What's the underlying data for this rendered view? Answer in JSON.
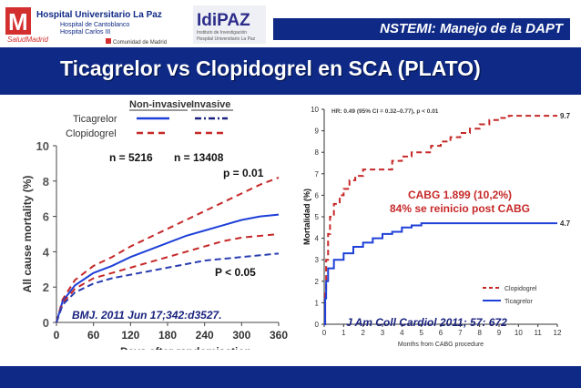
{
  "header": {
    "hospital_name": "Hospital Universitario La Paz",
    "hospital_sub1": "Hospital de Cantoblanco",
    "hospital_sub2": "Hospital Carlos III",
    "salud": "SaludMadrid",
    "comunidad": "Comunidad de Madrid",
    "idipaz": "IdiPAZ",
    "idipaz_sub1": "Instituto de Investigación",
    "idipaz_sub2": "Hospital Universitario La Paz",
    "title": "NSTEMI: Manejo de la DAPT"
  },
  "main_title": "Ticagrelor vs Clopidogrel en SCA (PLATO)",
  "colors": {
    "navy": "#0f2a86",
    "red": "#c62828",
    "blue": "#1e40d8"
  },
  "chart_data": [
    {
      "type": "line",
      "xlabel": "Days after randomisation",
      "ylabel": "All cause mortality (%)",
      "xlim": [
        0,
        360
      ],
      "ylim": [
        0,
        10
      ],
      "xticks": [
        "0",
        "60",
        "120",
        "180",
        "240",
        "300",
        "360"
      ],
      "yticks": [
        "0",
        "2",
        "4",
        "6",
        "8",
        "10"
      ],
      "legend": {
        "header_a": "Non-invasive",
        "header_b": "Invasive",
        "row1": "Ticagrelor",
        "row2": "Clopidogrel"
      },
      "x": [
        0,
        10,
        30,
        60,
        90,
        120,
        150,
        180,
        210,
        240,
        270,
        300,
        330,
        360
      ],
      "series": [
        {
          "name": "Non-invasive Clopidogrel",
          "values": [
            0,
            1.3,
            2.4,
            3.2,
            3.7,
            4.3,
            4.8,
            5.3,
            5.8,
            6.3,
            6.8,
            7.3,
            7.8,
            8.2
          ]
        },
        {
          "name": "Non-invasive Ticagrelor",
          "values": [
            0,
            1.2,
            2.1,
            2.8,
            3.2,
            3.7,
            4.1,
            4.5,
            4.9,
            5.2,
            5.5,
            5.8,
            6.0,
            6.1
          ]
        },
        {
          "name": "Invasive Clopidogrel",
          "values": [
            0,
            1.1,
            1.9,
            2.5,
            2.8,
            3.1,
            3.4,
            3.7,
            4.0,
            4.3,
            4.6,
            4.8,
            4.9,
            5.0
          ]
        },
        {
          "name": "Invasive Ticagrelor",
          "values": [
            0,
            1.0,
            1.7,
            2.2,
            2.5,
            2.7,
            2.9,
            3.1,
            3.3,
            3.5,
            3.6,
            3.7,
            3.8,
            3.9
          ]
        }
      ],
      "annotations": {
        "n_noninv": "n = 5216",
        "n_inv": "n = 13408",
        "p1": "p = 0.01",
        "p2": "P < 0.05",
        "ref": "BMJ. 2011 Jun 17;342:d3527."
      }
    },
    {
      "type": "line",
      "xlabel": "Months from CABG procedure",
      "ylabel": "Mortalidad (%)",
      "xlim": [
        0,
        12
      ],
      "ylim": [
        0,
        10
      ],
      "xticks": [
        "0",
        "1",
        "2",
        "3",
        "4",
        "5",
        "6",
        "7",
        "8",
        "9",
        "10",
        "11",
        "12"
      ],
      "yticks": [
        "0",
        "1",
        "2",
        "3",
        "4",
        "5",
        "6",
        "7",
        "8",
        "9",
        "10"
      ],
      "hr_text": "HR: 0.49 (95% CI = 0.32–0.77), p < 0.01",
      "series": [
        {
          "name": "Clopidogrel",
          "end_label": "9.7",
          "x": [
            0,
            0.05,
            0.1,
            0.2,
            0.3,
            0.5,
            0.8,
            1.0,
            1.3,
            1.6,
            2.0,
            2.5,
            3.0,
            3.5,
            4.0,
            4.5,
            5.0,
            5.5,
            6.0,
            6.5,
            7.0,
            7.5,
            8.0,
            8.5,
            9.0,
            9.5,
            10.0,
            11.0,
            12.0
          ],
          "values": [
            0,
            1.5,
            3.0,
            4.2,
            5.0,
            5.6,
            6.0,
            6.3,
            6.7,
            6.9,
            7.2,
            7.2,
            7.2,
            7.6,
            7.8,
            8.0,
            8.0,
            8.3,
            8.5,
            8.7,
            8.9,
            9.1,
            9.3,
            9.5,
            9.6,
            9.7,
            9.7,
            9.7,
            9.7
          ]
        },
        {
          "name": "Ticagrelor",
          "end_label": "4.7",
          "x": [
            0,
            0.05,
            0.1,
            0.2,
            0.5,
            1.0,
            1.5,
            2.0,
            2.5,
            3.0,
            3.5,
            4.0,
            4.5,
            5.0,
            5.5,
            6.0,
            7.0,
            8.0,
            9.0,
            10.0,
            11.0,
            12.0
          ],
          "values": [
            0,
            1.2,
            2.0,
            2.6,
            3.0,
            3.3,
            3.6,
            3.8,
            4.0,
            4.2,
            4.3,
            4.5,
            4.6,
            4.7,
            4.7,
            4.7,
            4.7,
            4.7,
            4.7,
            4.7,
            4.7,
            4.7
          ]
        }
      ],
      "annotations": {
        "cabg1": "CABG 1.899 (10,2%)",
        "cabg2": "84% se reinicio post CABG",
        "ref": "J Am Coll Cardiol 2011; 57: 672"
      }
    }
  ]
}
